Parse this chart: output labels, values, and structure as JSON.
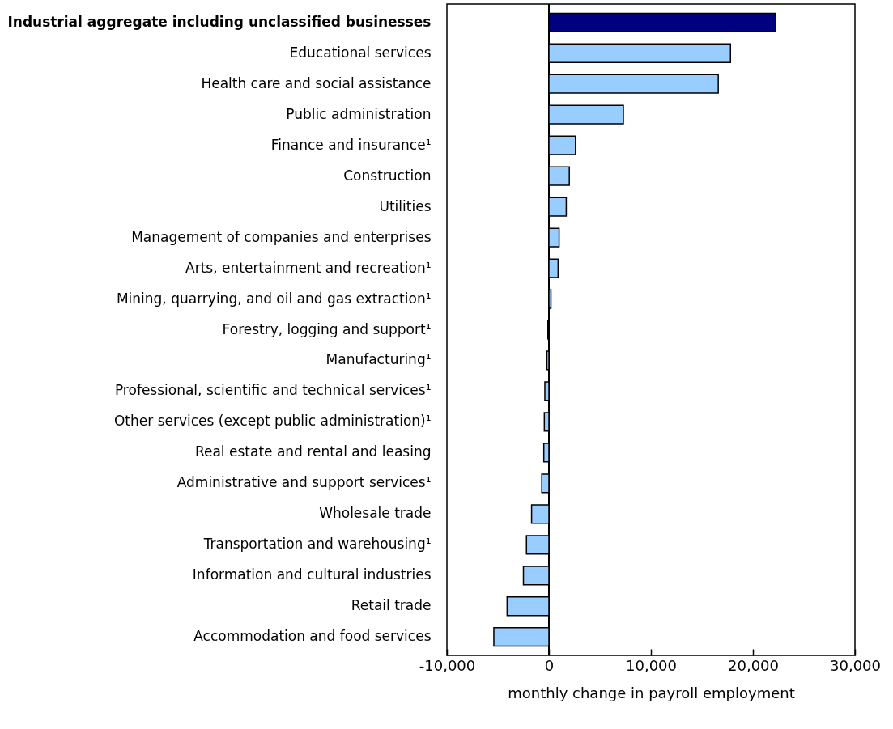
{
  "chart_data": {
    "type": "bar",
    "orientation": "horizontal",
    "xlabel": "monthly change in payroll employment",
    "categories": [
      "Industrial aggregate including unclassified businesses",
      "Educational services",
      "Health care and social assistance",
      "Public administration",
      "Finance and insurance¹",
      "Construction",
      "Utilities",
      "Management of companies and enterprises",
      "Arts, entertainment and recreation¹",
      "Mining, quarrying, and oil and gas extraction¹",
      "Forestry, logging and support¹",
      "Manufacturing¹",
      "Professional, scientific and technical services¹",
      "Other services (except public administration)¹",
      "Real estate and rental and leasing",
      "Administrative and support services¹",
      "Wholesale trade",
      "Transportation and warehousing¹",
      "Information and cultural industries",
      "Retail trade",
      "Accommodation and food services"
    ],
    "values": [
      22200,
      17800,
      16600,
      7300,
      2600,
      2000,
      1700,
      1000,
      900,
      200,
      -100,
      -200,
      -400,
      -450,
      -500,
      -700,
      -1700,
      -2200,
      -2500,
      -4100,
      -5400
    ],
    "colors": [
      "#000080",
      "#99ccff",
      "#99ccff",
      "#99ccff",
      "#99ccff",
      "#99ccff",
      "#99ccff",
      "#99ccff",
      "#99ccff",
      "#99ccff",
      "#99ccff",
      "#99ccff",
      "#99ccff",
      "#99ccff",
      "#99ccff",
      "#99ccff",
      "#99ccff",
      "#99ccff",
      "#99ccff",
      "#99ccff",
      "#99ccff"
    ],
    "xlim": [
      -10000,
      30000
    ],
    "xticks": [
      {
        "value": -10000,
        "label": "-10,000"
      },
      0,
      {
        "value": 10000,
        "label": "10,000"
      },
      {
        "value": 20000,
        "label": "20,000"
      },
      {
        "value": 30000,
        "label": "30,000"
      }
    ],
    "ref_lines": [
      {
        "axis": "x",
        "value": 0
      }
    ],
    "grid": false
  }
}
